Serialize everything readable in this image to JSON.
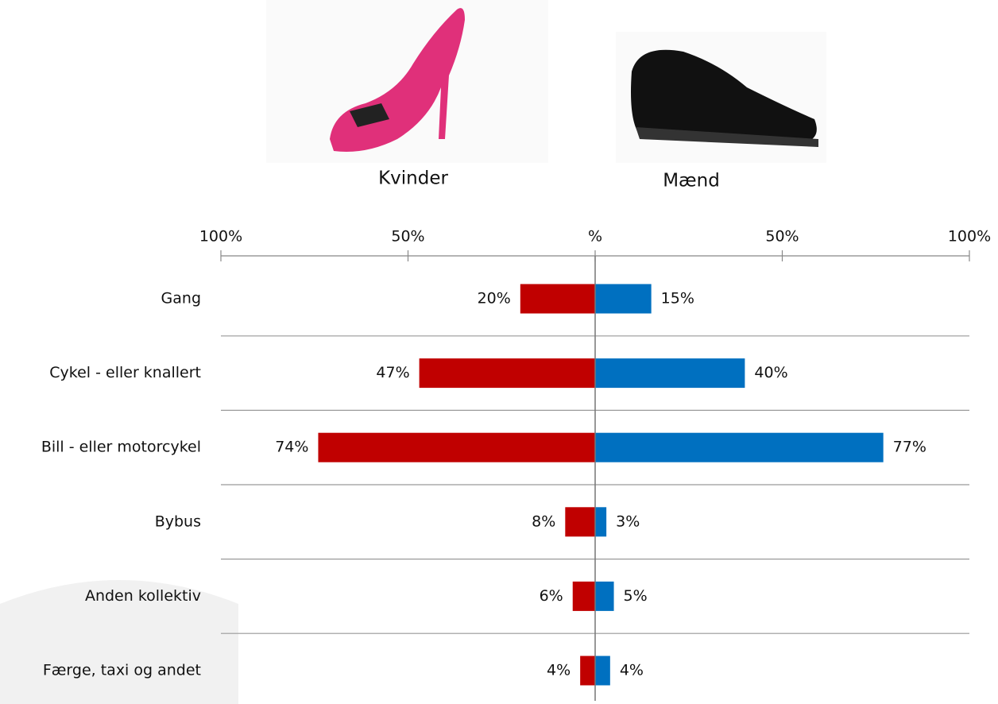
{
  "chart_data": {
    "type": "butterfly",
    "categories": [
      "Gang",
      "Cykel - eller knallert",
      "Bill - eller motorcykel",
      "Bybus",
      "Anden kollektiv",
      "Færge, taxi og andet"
    ],
    "series": [
      {
        "name": "Kvinder",
        "color": "#c00000",
        "side": "left",
        "values": [
          20,
          47,
          74,
          8,
          6,
          4
        ],
        "value_labels": [
          "20%",
          "47%",
          "74%",
          "8%",
          "6%",
          "4%"
        ]
      },
      {
        "name": "Mænd",
        "color": "#0070c0",
        "side": "right",
        "values": [
          15,
          40,
          77,
          3,
          5,
          4
        ],
        "value_labels": [
          "15%",
          "40%",
          "77%",
          "3%",
          "5%",
          "4%"
        ]
      }
    ],
    "xlim": [
      -100,
      100
    ],
    "xticks": [
      {
        "value": -100,
        "label": "100%"
      },
      {
        "value": -50,
        "label": "50%"
      },
      {
        "value": 0,
        "label": "%"
      },
      {
        "value": 50,
        "label": "50%"
      },
      {
        "value": 100,
        "label": "100%"
      }
    ]
  }
}
